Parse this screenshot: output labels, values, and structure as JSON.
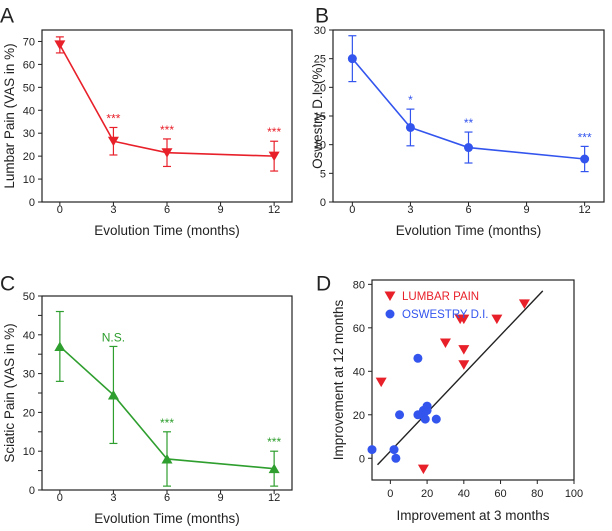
{
  "chart_data": [
    {
      "panel": "A",
      "type": "line",
      "title": "",
      "xlabel": "Evolution Time (months)",
      "ylabel": "Lumbar Pain (VAS in %)",
      "xlim": [
        -1,
        13
      ],
      "ylim": [
        0,
        75
      ],
      "xticks": [
        0,
        3,
        6,
        9,
        12
      ],
      "yticks": [
        0,
        10,
        20,
        30,
        40,
        50,
        60,
        70
      ],
      "color": "#e8202a",
      "marker": "triangle-down",
      "series": [
        {
          "name": "Lumbar Pain",
          "x": [
            0,
            3,
            6,
            12
          ],
          "y": [
            68.5,
            26.5,
            21.5,
            20
          ],
          "err": [
            3.5,
            6,
            6,
            6.5
          ],
          "annotations": [
            "",
            "***",
            "***",
            "***"
          ]
        }
      ]
    },
    {
      "panel": "B",
      "type": "line",
      "title": "",
      "xlabel": "Evolution Time (months)",
      "ylabel": "Oswestry D.I. (%)",
      "xlim": [
        -1,
        13
      ],
      "ylim": [
        0,
        30
      ],
      "xticks": [
        0,
        3,
        6,
        9,
        12
      ],
      "yticks": [
        0,
        5,
        10,
        15,
        20,
        25,
        30
      ],
      "color": "#3355ee",
      "marker": "circle",
      "series": [
        {
          "name": "Oswestry D.I.",
          "x": [
            0,
            3,
            6,
            12
          ],
          "y": [
            25,
            13,
            9.5,
            7.5
          ],
          "err": [
            4,
            3.2,
            2.7,
            2.2
          ],
          "annotations": [
            "",
            "*",
            "**",
            "***"
          ]
        }
      ]
    },
    {
      "panel": "C",
      "type": "line",
      "title": "",
      "xlabel": "Evolution Time (months)",
      "ylabel": "Sciatic Pain (VAS in %)",
      "xlim": [
        -1,
        13
      ],
      "ylim": [
        0,
        50
      ],
      "xticks": [
        0,
        3,
        6,
        9,
        12
      ],
      "yticks": [
        0,
        5,
        10,
        15,
        20,
        25,
        30,
        35,
        40,
        45,
        50
      ],
      "ytick_labels": [
        "0",
        "",
        "10",
        "",
        "20",
        "",
        "30",
        "",
        "40",
        "",
        "50"
      ],
      "color": "#2e9e2e",
      "marker": "triangle-up",
      "series": [
        {
          "name": "Sciatic Pain",
          "x": [
            0,
            3,
            6,
            12
          ],
          "y": [
            37,
            24.5,
            8,
            5.5
          ],
          "err": [
            9,
            12.5,
            7,
            4.5
          ],
          "annotations": [
            "",
            "N.S.",
            "***",
            "***"
          ]
        }
      ]
    },
    {
      "panel": "D",
      "type": "scatter",
      "title": "",
      "xlabel": "Improvement at 3 months",
      "ylabel": "Improvement at 12 months",
      "xlim": [
        -10,
        100
      ],
      "ylim": [
        -10,
        82
      ],
      "xticks": [
        0,
        20,
        40,
        60,
        80,
        100
      ],
      "yticks": [
        0,
        20,
        40,
        60,
        80
      ],
      "legend_position": "top-left",
      "series": [
        {
          "name": "LUMBAR PAIN",
          "color": "#e8202a",
          "marker": "triangle-down",
          "x": [
            -5,
            18,
            30,
            38,
            40,
            40,
            40,
            58,
            73
          ],
          "y": [
            35,
            -5,
            53,
            64,
            64,
            50,
            43,
            64,
            71
          ]
        },
        {
          "name": "OSWESTRY D.I.",
          "color": "#3355ee",
          "marker": "circle",
          "x": [
            -10,
            2,
            3,
            5,
            15,
            18,
            18,
            19,
            20,
            20,
            25,
            15
          ],
          "y": [
            4,
            4,
            0,
            20,
            20,
            20,
            22,
            18,
            22,
            24,
            18,
            46
          ]
        }
      ],
      "fit_line": {
        "x": [
          -7,
          83
        ],
        "y": [
          -3,
          77
        ]
      }
    }
  ]
}
